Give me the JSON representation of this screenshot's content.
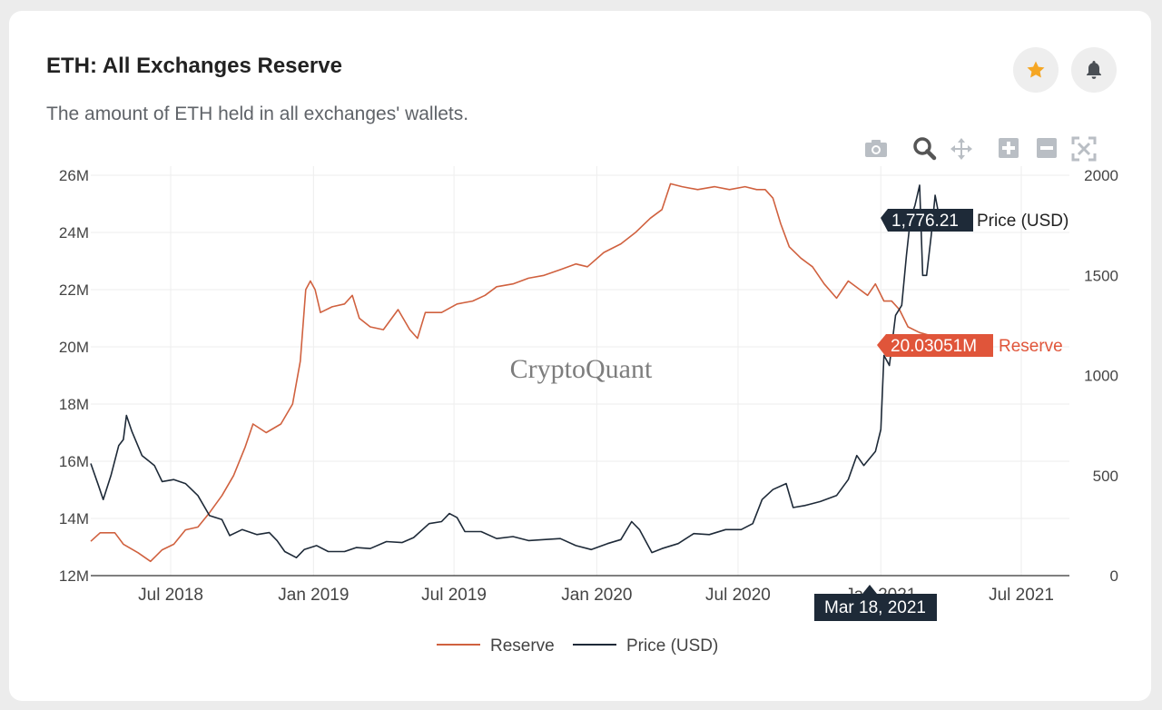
{
  "header": {
    "title": "ETH: All Exchanges Reserve",
    "subtitle": "The amount of ETH held in all exchanges' wallets."
  },
  "actions": {
    "star_icon": "star-icon",
    "bell_icon": "bell-icon",
    "star_color": "#f5a623"
  },
  "modebar": [
    "camera-icon",
    "zoom-icon",
    "pan-icon",
    "zoom-in-icon",
    "zoom-out-icon",
    "autoscale-icon"
  ],
  "watermark": "CryptoQuant",
  "hover": {
    "price_value": "1,776.21",
    "price_label": "Price (USD)",
    "reserve_value": "20.03051M",
    "reserve_label": "Reserve",
    "date_label": "Mar 18, 2021"
  },
  "chart_data": {
    "type": "line",
    "x_ticks": [
      "Jul 2018",
      "Jan 2019",
      "Jul 2019",
      "Jan 2020",
      "Jul 2020",
      "Jan 2021",
      "Jul 2021"
    ],
    "y_left_ticks": [
      "12M",
      "14M",
      "16M",
      "18M",
      "20M",
      "22M",
      "24M",
      "26M"
    ],
    "y_right_ticks": [
      "0",
      "500",
      "1000",
      "1500",
      "2000"
    ],
    "y_left_range": [
      12,
      26
    ],
    "y_right_range": [
      0,
      2000
    ],
    "x_range": [
      "2018-03-20",
      "2021-09-01"
    ],
    "legend_position": "bottom-center",
    "grid": true,
    "series": [
      {
        "name": "Reserve",
        "axis": "left",
        "unit": "M",
        "color": "#d0613f",
        "points": [
          [
            "2018-03-20",
            13.2
          ],
          [
            "2018-04-01",
            13.5
          ],
          [
            "2018-04-20",
            13.5
          ],
          [
            "2018-05-01",
            13.1
          ],
          [
            "2018-05-20",
            12.8
          ],
          [
            "2018-06-05",
            12.5
          ],
          [
            "2018-06-20",
            12.9
          ],
          [
            "2018-07-05",
            13.1
          ],
          [
            "2018-07-20",
            13.6
          ],
          [
            "2018-08-05",
            13.7
          ],
          [
            "2018-08-20",
            14.2
          ],
          [
            "2018-09-05",
            14.8
          ],
          [
            "2018-09-20",
            15.5
          ],
          [
            "2018-10-05",
            16.5
          ],
          [
            "2018-10-15",
            17.3
          ],
          [
            "2018-11-01",
            17.0
          ],
          [
            "2018-11-20",
            17.3
          ],
          [
            "2018-12-05",
            18.0
          ],
          [
            "2018-12-15",
            19.5
          ],
          [
            "2018-12-22",
            22.0
          ],
          [
            "2018-12-28",
            22.3
          ],
          [
            "2019-01-03",
            22.0
          ],
          [
            "2019-01-10",
            21.2
          ],
          [
            "2019-01-25",
            21.4
          ],
          [
            "2019-02-10",
            21.5
          ],
          [
            "2019-02-20",
            21.8
          ],
          [
            "2019-03-01",
            21.0
          ],
          [
            "2019-03-15",
            20.7
          ],
          [
            "2019-04-01",
            20.6
          ],
          [
            "2019-04-20",
            21.3
          ],
          [
            "2019-05-05",
            20.6
          ],
          [
            "2019-05-15",
            20.3
          ],
          [
            "2019-05-25",
            21.2
          ],
          [
            "2019-06-15",
            21.2
          ],
          [
            "2019-07-05",
            21.5
          ],
          [
            "2019-07-25",
            21.6
          ],
          [
            "2019-08-10",
            21.8
          ],
          [
            "2019-08-25",
            22.1
          ],
          [
            "2019-09-15",
            22.2
          ],
          [
            "2019-10-05",
            22.4
          ],
          [
            "2019-10-25",
            22.5
          ],
          [
            "2019-11-15",
            22.7
          ],
          [
            "2019-12-05",
            22.9
          ],
          [
            "2019-12-20",
            22.8
          ],
          [
            "2020-01-10",
            23.3
          ],
          [
            "2020-02-01",
            23.6
          ],
          [
            "2020-02-20",
            24.0
          ],
          [
            "2020-03-10",
            24.5
          ],
          [
            "2020-03-25",
            24.8
          ],
          [
            "2020-04-05",
            25.7
          ],
          [
            "2020-04-20",
            25.6
          ],
          [
            "2020-05-10",
            25.5
          ],
          [
            "2020-06-01",
            25.6
          ],
          [
            "2020-06-20",
            25.5
          ],
          [
            "2020-07-10",
            25.6
          ],
          [
            "2020-07-25",
            25.5
          ],
          [
            "2020-08-05",
            25.5
          ],
          [
            "2020-08-15",
            25.2
          ],
          [
            "2020-08-25",
            24.3
          ],
          [
            "2020-09-05",
            23.5
          ],
          [
            "2020-09-20",
            23.1
          ],
          [
            "2020-10-05",
            22.8
          ],
          [
            "2020-10-20",
            22.2
          ],
          [
            "2020-11-05",
            21.7
          ],
          [
            "2020-11-20",
            22.3
          ],
          [
            "2020-12-05",
            22.0
          ],
          [
            "2020-12-15",
            21.8
          ],
          [
            "2020-12-25",
            22.2
          ],
          [
            "2021-01-05",
            21.6
          ],
          [
            "2021-01-15",
            21.6
          ],
          [
            "2021-01-25",
            21.3
          ],
          [
            "2021-02-05",
            20.7
          ],
          [
            "2021-02-20",
            20.5
          ],
          [
            "2021-03-05",
            20.4
          ],
          [
            "2021-03-18",
            20.03
          ]
        ]
      },
      {
        "name": "Price (USD)",
        "axis": "right",
        "unit": "USD",
        "color": "#1e2a38",
        "points": [
          [
            "2018-03-20",
            560
          ],
          [
            "2018-03-30",
            450
          ],
          [
            "2018-04-05",
            380
          ],
          [
            "2018-04-15",
            500
          ],
          [
            "2018-04-25",
            650
          ],
          [
            "2018-05-01",
            680
          ],
          [
            "2018-05-05",
            800
          ],
          [
            "2018-05-12",
            720
          ],
          [
            "2018-05-25",
            600
          ],
          [
            "2018-06-10",
            550
          ],
          [
            "2018-06-20",
            470
          ],
          [
            "2018-07-05",
            480
          ],
          [
            "2018-07-20",
            460
          ],
          [
            "2018-08-05",
            400
          ],
          [
            "2018-08-20",
            300
          ],
          [
            "2018-09-05",
            280
          ],
          [
            "2018-09-15",
            200
          ],
          [
            "2018-10-01",
            230
          ],
          [
            "2018-10-20",
            205
          ],
          [
            "2018-11-05",
            215
          ],
          [
            "2018-11-15",
            175
          ],
          [
            "2018-11-25",
            120
          ],
          [
            "2018-12-10",
            90
          ],
          [
            "2018-12-20",
            130
          ],
          [
            "2019-01-05",
            150
          ],
          [
            "2019-01-20",
            120
          ],
          [
            "2019-02-10",
            120
          ],
          [
            "2019-02-25",
            140
          ],
          [
            "2019-03-15",
            135
          ],
          [
            "2019-04-05",
            170
          ],
          [
            "2019-04-25",
            165
          ],
          [
            "2019-05-10",
            190
          ],
          [
            "2019-05-30",
            260
          ],
          [
            "2019-06-15",
            270
          ],
          [
            "2019-06-25",
            310
          ],
          [
            "2019-07-05",
            290
          ],
          [
            "2019-07-15",
            220
          ],
          [
            "2019-08-05",
            220
          ],
          [
            "2019-08-25",
            185
          ],
          [
            "2019-09-15",
            195
          ],
          [
            "2019-10-05",
            175
          ],
          [
            "2019-10-25",
            180
          ],
          [
            "2019-11-15",
            185
          ],
          [
            "2019-12-05",
            150
          ],
          [
            "2019-12-25",
            130
          ],
          [
            "2020-01-15",
            160
          ],
          [
            "2020-02-01",
            180
          ],
          [
            "2020-02-15",
            270
          ],
          [
            "2020-02-25",
            230
          ],
          [
            "2020-03-12",
            115
          ],
          [
            "2020-03-25",
            135
          ],
          [
            "2020-04-15",
            160
          ],
          [
            "2020-05-05",
            210
          ],
          [
            "2020-05-25",
            205
          ],
          [
            "2020-06-15",
            230
          ],
          [
            "2020-07-05",
            230
          ],
          [
            "2020-07-20",
            260
          ],
          [
            "2020-08-01",
            380
          ],
          [
            "2020-08-15",
            430
          ],
          [
            "2020-09-01",
            460
          ],
          [
            "2020-09-10",
            340
          ],
          [
            "2020-09-25",
            350
          ],
          [
            "2020-10-15",
            370
          ],
          [
            "2020-11-05",
            400
          ],
          [
            "2020-11-20",
            480
          ],
          [
            "2020-12-01",
            600
          ],
          [
            "2020-12-10",
            550
          ],
          [
            "2020-12-25",
            620
          ],
          [
            "2021-01-01",
            730
          ],
          [
            "2021-01-05",
            1100
          ],
          [
            "2021-01-12",
            1050
          ],
          [
            "2021-01-20",
            1300
          ],
          [
            "2021-01-28",
            1350
          ],
          [
            "2021-02-03",
            1600
          ],
          [
            "2021-02-08",
            1780
          ],
          [
            "2021-02-14",
            1850
          ],
          [
            "2021-02-20",
            1950
          ],
          [
            "2021-02-24",
            1500
          ],
          [
            "2021-03-01",
            1500
          ],
          [
            "2021-03-07",
            1700
          ],
          [
            "2021-03-12",
            1900
          ],
          [
            "2021-03-18",
            1776.21
          ]
        ]
      }
    ]
  }
}
